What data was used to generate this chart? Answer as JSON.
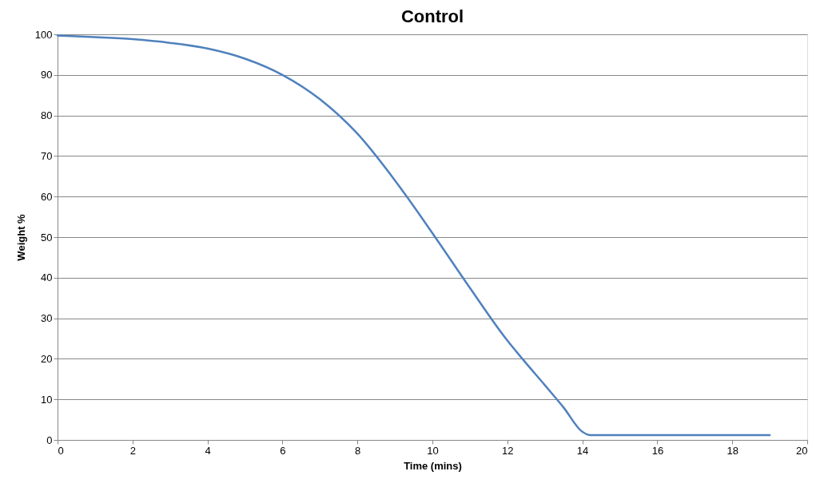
{
  "chart_data": {
    "type": "line",
    "title": "Control",
    "xlabel": "Time (mins)",
    "ylabel": "Weight %",
    "x": [
      0,
      1,
      2,
      3,
      4,
      5,
      6,
      7,
      8,
      9,
      10,
      11,
      12,
      12.4,
      13,
      13.5,
      14,
      14.2,
      15,
      17,
      19
    ],
    "series": [
      {
        "color": "#4f81bd",
        "values": [
          99.7,
          99.3,
          98.8,
          97.9,
          96.5,
          94,
          90,
          84,
          75.5,
          64,
          51,
          37.5,
          24.5,
          20,
          13.5,
          8,
          2,
          1.2,
          1.2,
          1.2,
          1.2
        ]
      }
    ],
    "xlim": [
      0,
      20
    ],
    "xticks": [
      0,
      2,
      4,
      6,
      8,
      10,
      12,
      14,
      16,
      18,
      20
    ],
    "ylim": [
      0,
      100
    ],
    "yticks": [
      0,
      10,
      20,
      30,
      40,
      50,
      60,
      70,
      80,
      90,
      100
    ],
    "grid": "y",
    "marker": "none",
    "line_style": "solid"
  }
}
